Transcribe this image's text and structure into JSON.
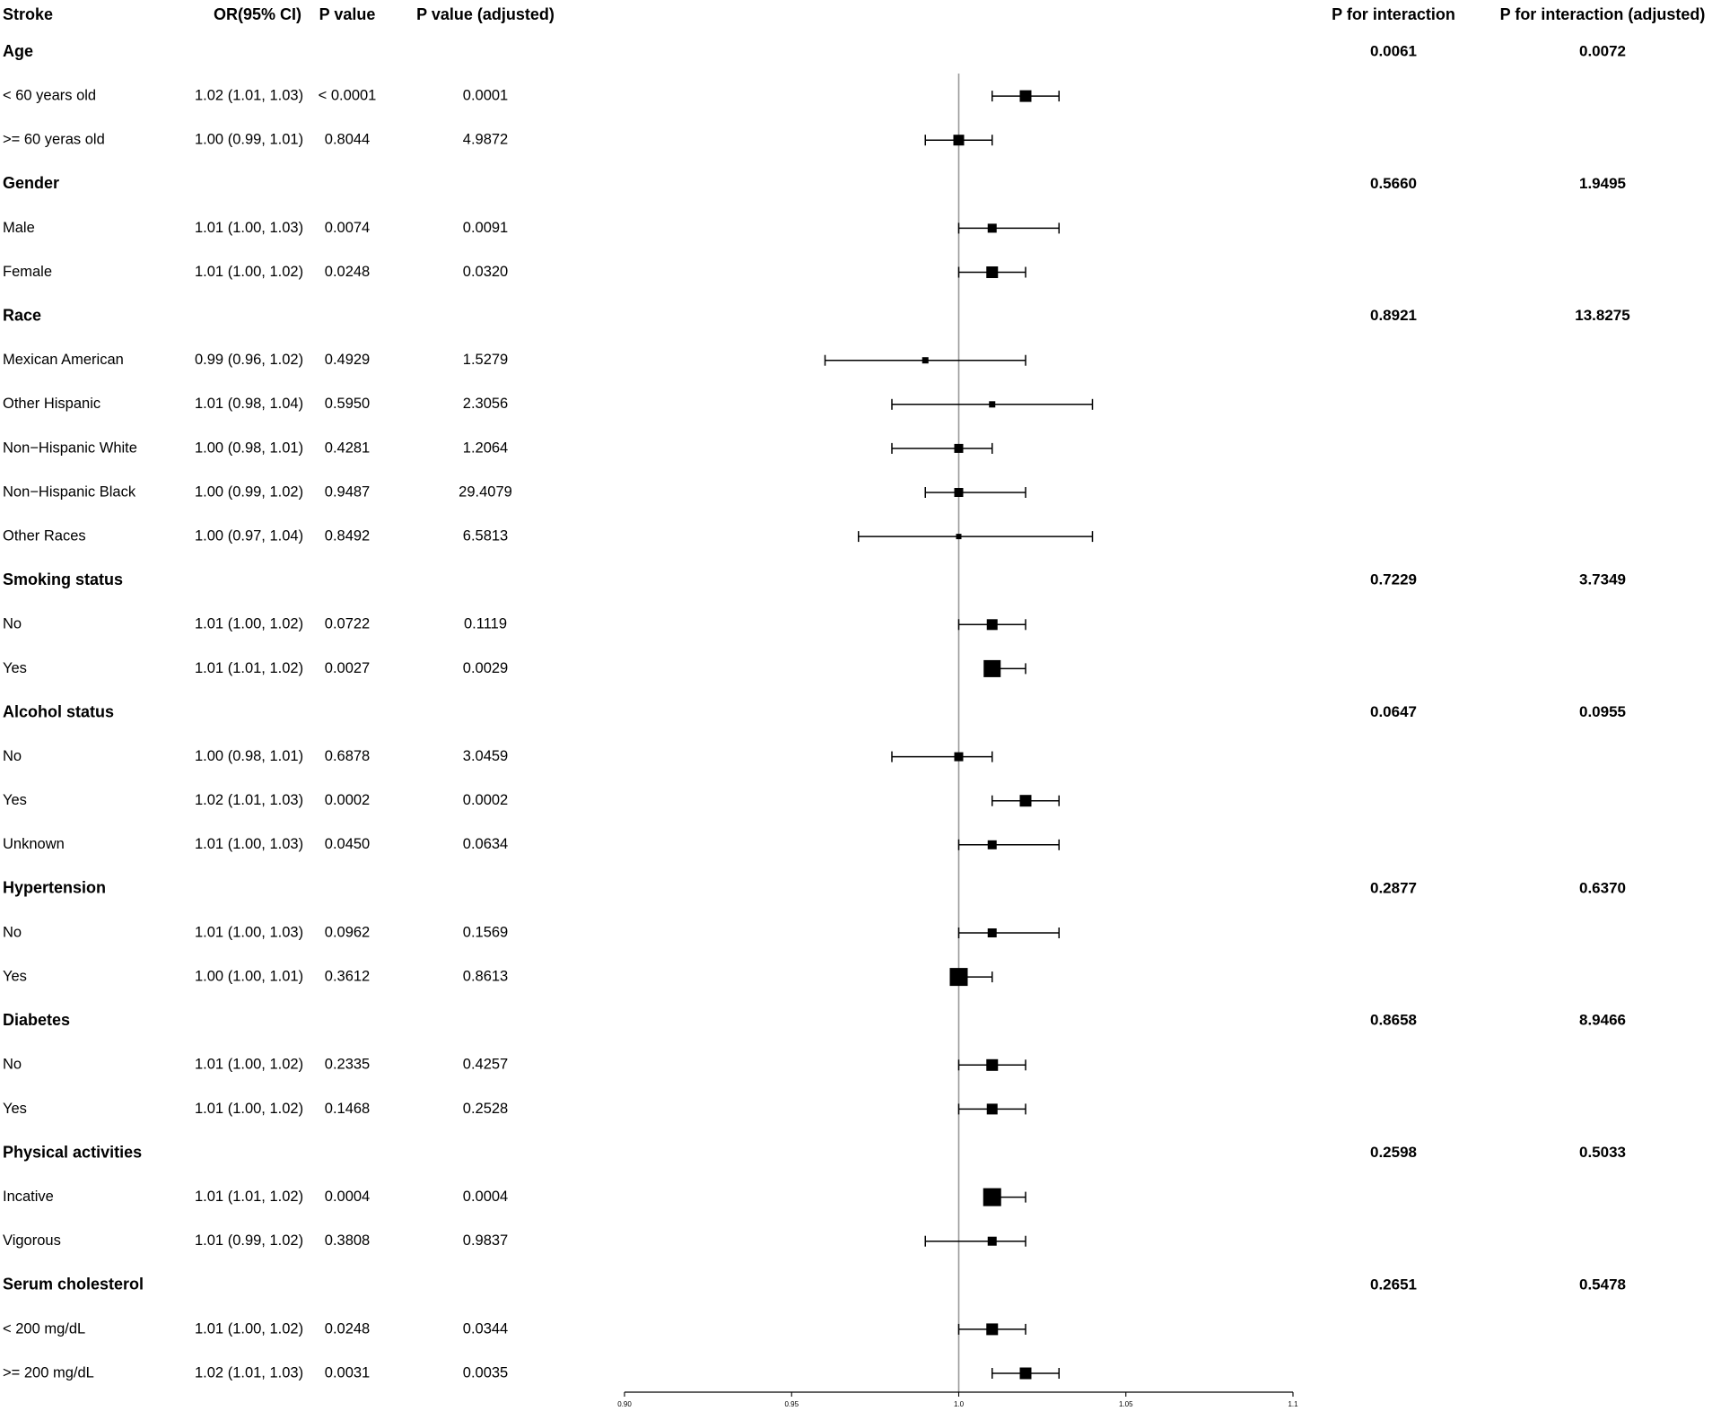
{
  "chart_data": {
    "type": "forest",
    "columns": [
      "Stroke",
      "OR(95% CI)",
      "P value",
      "P value (adjusted)",
      "P for interaction",
      "P for interaction (adjusted)"
    ],
    "reference_line": 1.0,
    "xlim": [
      0.9,
      1.1
    ],
    "xticks": [
      {
        "value": 0.9,
        "label": "0.90"
      },
      {
        "value": 0.95,
        "label": "0.95"
      },
      {
        "value": 1.0,
        "label": "1.0"
      },
      {
        "value": 1.05,
        "label": "1.05"
      },
      {
        "value": 1.1,
        "label": "1.1"
      }
    ],
    "rows": [
      {
        "kind": "group",
        "label": "Age",
        "p_int": "0.0061",
        "p_int_adj": "0.0072"
      },
      {
        "kind": "sub",
        "label": "< 60 years old",
        "or_ci": "1.02 (1.01, 1.03)",
        "p": "< 0.0001",
        "p_adj": "0.0001",
        "or": 1.02,
        "lo": 1.01,
        "hi": 1.03,
        "box": 13
      },
      {
        "kind": "sub",
        "label": ">= 60 yeras old",
        "or_ci": "1.00 (0.99, 1.01)",
        "p": "0.8044",
        "p_adj": "4.9872",
        "or": 1.0,
        "lo": 0.99,
        "hi": 1.01,
        "box": 12
      },
      {
        "kind": "group",
        "label": "Gender",
        "p_int": "0.5660",
        "p_int_adj": "1.9495"
      },
      {
        "kind": "sub",
        "label": "Male",
        "or_ci": "1.01 (1.00, 1.03)",
        "p": "0.0074",
        "p_adj": "0.0091",
        "or": 1.01,
        "lo": 1.0,
        "hi": 1.03,
        "box": 10
      },
      {
        "kind": "sub",
        "label": "Female",
        "or_ci": "1.01 (1.00, 1.02)",
        "p": "0.0248",
        "p_adj": "0.0320",
        "or": 1.01,
        "lo": 1.0,
        "hi": 1.02,
        "box": 13
      },
      {
        "kind": "group",
        "label": "Race",
        "p_int": "0.8921",
        "p_int_adj": "13.8275"
      },
      {
        "kind": "sub",
        "label": "Mexican American",
        "or_ci": "0.99 (0.96, 1.02)",
        "p": "0.4929",
        "p_adj": "1.5279",
        "or": 0.99,
        "lo": 0.96,
        "hi": 1.02,
        "box": 7
      },
      {
        "kind": "sub",
        "label": "Other Hispanic",
        "or_ci": "1.01 (0.98, 1.04)",
        "p": "0.5950",
        "p_adj": "2.3056",
        "or": 1.01,
        "lo": 0.98,
        "hi": 1.04,
        "box": 7
      },
      {
        "kind": "sub",
        "label": "Non−Hispanic White",
        "or_ci": "1.00 (0.98, 1.01)",
        "p": "0.4281",
        "p_adj": "1.2064",
        "or": 1.0,
        "lo": 0.98,
        "hi": 1.01,
        "box": 10
      },
      {
        "kind": "sub",
        "label": "Non−Hispanic Black",
        "or_ci": "1.00 (0.99, 1.02)",
        "p": "0.9487",
        "p_adj": "29.4079",
        "or": 1.0,
        "lo": 0.99,
        "hi": 1.02,
        "box": 10
      },
      {
        "kind": "sub",
        "label": "Other Races",
        "or_ci": "1.00 (0.97, 1.04)",
        "p": "0.8492",
        "p_adj": "6.5813",
        "or": 1.0,
        "lo": 0.97,
        "hi": 1.04,
        "box": 6
      },
      {
        "kind": "group",
        "label": "Smoking status",
        "p_int": "0.7229",
        "p_int_adj": "3.7349"
      },
      {
        "kind": "sub",
        "label": "No",
        "or_ci": "1.01 (1.00, 1.02)",
        "p": "0.0722",
        "p_adj": "0.1119",
        "or": 1.01,
        "lo": 1.0,
        "hi": 1.02,
        "box": 12
      },
      {
        "kind": "sub",
        "label": "Yes",
        "or_ci": "1.01 (1.01, 1.02)",
        "p": "0.0027",
        "p_adj": "0.0029",
        "or": 1.01,
        "lo": 1.01,
        "hi": 1.02,
        "box": 19
      },
      {
        "kind": "group",
        "label": "Alcohol status",
        "p_int": "0.0647",
        "p_int_adj": "0.0955"
      },
      {
        "kind": "sub",
        "label": "No",
        "or_ci": "1.00 (0.98, 1.01)",
        "p": "0.6878",
        "p_adj": "3.0459",
        "or": 1.0,
        "lo": 0.98,
        "hi": 1.01,
        "box": 10
      },
      {
        "kind": "sub",
        "label": "Yes",
        "or_ci": "1.02 (1.01, 1.03)",
        "p": "0.0002",
        "p_adj": "0.0002",
        "or": 1.02,
        "lo": 1.01,
        "hi": 1.03,
        "box": 13
      },
      {
        "kind": "sub",
        "label": "Unknown",
        "or_ci": "1.01 (1.00, 1.03)",
        "p": "0.0450",
        "p_adj": "0.0634",
        "or": 1.01,
        "lo": 1.0,
        "hi": 1.03,
        "box": 10
      },
      {
        "kind": "group",
        "label": "Hypertension",
        "p_int": "0.2877",
        "p_int_adj": "0.6370"
      },
      {
        "kind": "sub",
        "label": "No",
        "or_ci": "1.01 (1.00, 1.03)",
        "p": "0.0962",
        "p_adj": "0.1569",
        "or": 1.01,
        "lo": 1.0,
        "hi": 1.03,
        "box": 10
      },
      {
        "kind": "sub",
        "label": "Yes",
        "or_ci": "1.00 (1.00, 1.01)",
        "p": "0.3612",
        "p_adj": "0.8613",
        "or": 1.0,
        "lo": 1.0,
        "hi": 1.01,
        "box": 20
      },
      {
        "kind": "group",
        "label": "Diabetes",
        "p_int": "0.8658",
        "p_int_adj": "8.9466"
      },
      {
        "kind": "sub",
        "label": "No",
        "or_ci": "1.01 (1.00, 1.02)",
        "p": "0.2335",
        "p_adj": "0.4257",
        "or": 1.01,
        "lo": 1.0,
        "hi": 1.02,
        "box": 13
      },
      {
        "kind": "sub",
        "label": "Yes",
        "or_ci": "1.01 (1.00, 1.02)",
        "p": "0.1468",
        "p_adj": "0.2528",
        "or": 1.01,
        "lo": 1.0,
        "hi": 1.02,
        "box": 12
      },
      {
        "kind": "group",
        "label": "Physical activities",
        "p_int": "0.2598",
        "p_int_adj": "0.5033"
      },
      {
        "kind": "sub",
        "label": "Incative",
        "or_ci": "1.01 (1.01, 1.02)",
        "p": "0.0004",
        "p_adj": "0.0004",
        "or": 1.01,
        "lo": 1.01,
        "hi": 1.02,
        "box": 20
      },
      {
        "kind": "sub",
        "label": "Vigorous",
        "or_ci": "1.01 (0.99, 1.02)",
        "p": "0.3808",
        "p_adj": "0.9837",
        "or": 1.01,
        "lo": 0.99,
        "hi": 1.02,
        "box": 10
      },
      {
        "kind": "group",
        "label": "Serum cholesterol",
        "p_int": "0.2651",
        "p_int_adj": "0.5478"
      },
      {
        "kind": "sub",
        "label": "< 200 mg/dL",
        "or_ci": "1.01 (1.00, 1.02)",
        "p": "0.0248",
        "p_adj": "0.0344",
        "or": 1.01,
        "lo": 1.0,
        "hi": 1.02,
        "box": 13
      },
      {
        "kind": "sub",
        "label": ">= 200 mg/dL",
        "or_ci": "1.02 (1.01, 1.03)",
        "p": "0.0031",
        "p_adj": "0.0035",
        "or": 1.02,
        "lo": 1.01,
        "hi": 1.03,
        "box": 13
      }
    ]
  }
}
